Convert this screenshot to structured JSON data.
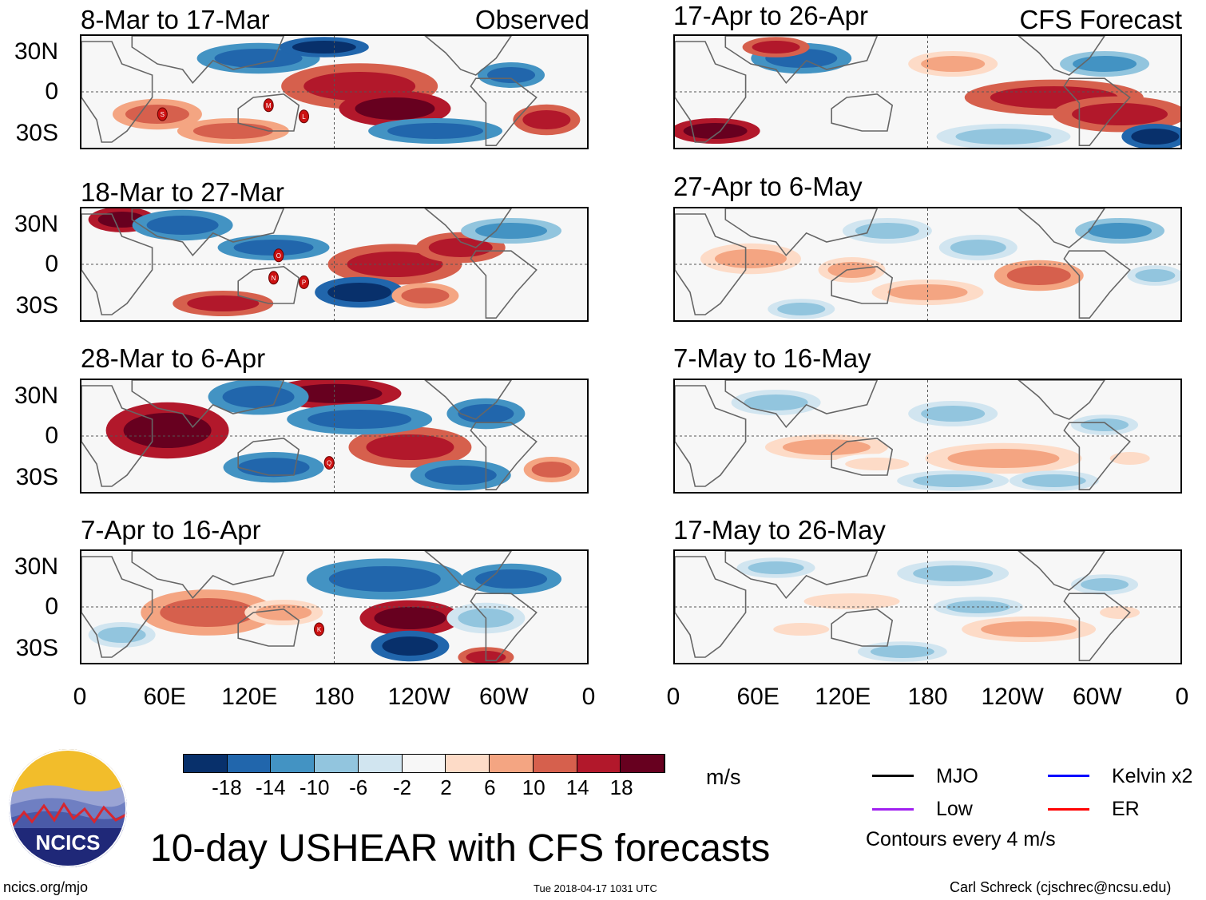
{
  "colors": {
    "dark_blue": "#08306b",
    "blue": "#2166ac",
    "mid_blue": "#4393c3",
    "light_blue": "#92c5de",
    "pale_blue": "#d1e5f0",
    "white": "#f7f7f7",
    "pale_red": "#fddbc7",
    "light_red": "#f4a582",
    "mid_red": "#d6604d",
    "red": "#b2182b",
    "dark_red": "#67001f",
    "mjo": "#000000",
    "kelvin": "#0000ff",
    "low": "#a020f0",
    "er": "#ff0000",
    "land": "#666666"
  },
  "observed_label": "Observed",
  "forecast_label": "CFS Forecast",
  "panels_left": [
    {
      "title": "8-Mar to 17-Mar"
    },
    {
      "title": "18-Mar to 27-Mar"
    },
    {
      "title": "28-Mar to 6-Apr"
    },
    {
      "title": "7-Apr to 16-Apr"
    }
  ],
  "panels_right": [
    {
      "title": "17-Apr to 26-Apr"
    },
    {
      "title": "27-Apr to 6-May"
    },
    {
      "title": "7-May to 16-May"
    },
    {
      "title": "17-May to 26-May"
    }
  ],
  "y_ticks": [
    "30N",
    "0",
    "30S"
  ],
  "x_ticks": [
    "0",
    "60E",
    "120E",
    "180",
    "120W",
    "60W",
    "0"
  ],
  "colorbar": {
    "labels": [
      "-18",
      "-14",
      "-10",
      "-6",
      "-2",
      "2",
      "6",
      "10",
      "14",
      "18"
    ],
    "units": "m/s"
  },
  "legend": {
    "mjo": "MJO",
    "kelvin": "Kelvin x2",
    "low": "Low",
    "er": "ER",
    "contours": "Contours every 4 m/s"
  },
  "main_title": "10-day USHEAR with CFS forecasts",
  "logo_text": "NCICS",
  "footer": {
    "url": "ncics.org/mjo",
    "timestamp": "Tue 2018-04-17 1031 UTC",
    "credit": "Carl Schreck (cjschrec@ncsu.edu)"
  },
  "storm_labels": {
    "p1": [
      "S",
      "M",
      "L"
    ],
    "p2": [
      "O",
      "N",
      "P"
    ],
    "p3": [
      "Q"
    ],
    "p4": [
      "K"
    ]
  }
}
